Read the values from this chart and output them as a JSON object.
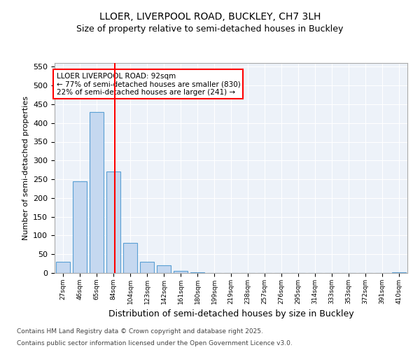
{
  "title1": "LLOER, LIVERPOOL ROAD, BUCKLEY, CH7 3LH",
  "title2": "Size of property relative to semi-detached houses in Buckley",
  "xlabel": "Distribution of semi-detached houses by size in Buckley",
  "ylabel": "Number of semi-detached properties",
  "footnote1": "Contains HM Land Registry data © Crown copyright and database right 2025.",
  "footnote2": "Contains public sector information licensed under the Open Government Licence v3.0.",
  "bins": [
    "27sqm",
    "46sqm",
    "65sqm",
    "84sqm",
    "104sqm",
    "123sqm",
    "142sqm",
    "161sqm",
    "180sqm",
    "199sqm",
    "219sqm",
    "238sqm",
    "257sqm",
    "276sqm",
    "295sqm",
    "314sqm",
    "333sqm",
    "353sqm",
    "372sqm",
    "391sqm",
    "410sqm"
  ],
  "values": [
    30,
    245,
    430,
    270,
    80,
    30,
    20,
    5,
    1,
    0,
    0,
    0,
    0,
    0,
    0,
    0,
    0,
    0,
    0,
    0,
    1
  ],
  "bar_color": "#c5d8f0",
  "bar_edge_color": "#5a9fd4",
  "red_line_x": 3.1,
  "annotation_text_line1": "LLOER LIVERPOOL ROAD: 92sqm",
  "annotation_text_line2": "← 77% of semi-detached houses are smaller (830)",
  "annotation_text_line3": "22% of semi-detached houses are larger (241) →",
  "ylim": [
    0,
    560
  ],
  "yticks": [
    0,
    50,
    100,
    150,
    200,
    250,
    300,
    350,
    400,
    450,
    500,
    550
  ],
  "plot_bg_color": "#edf2f9",
  "grid_color": "#ffffff"
}
